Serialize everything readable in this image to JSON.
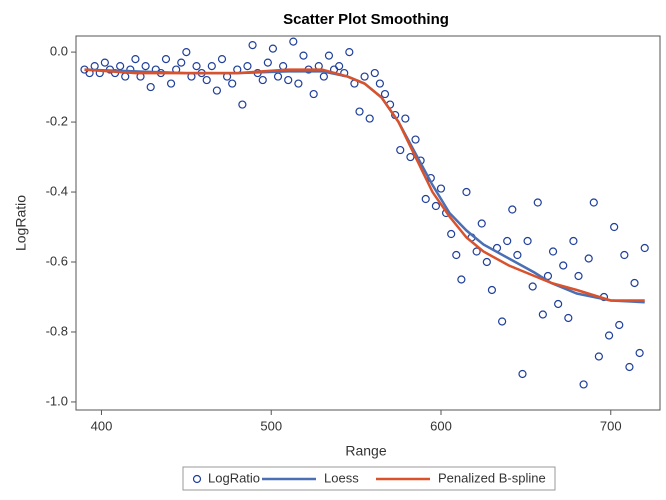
{
  "chart_data": {
    "type": "scatter",
    "title": "Scatter Plot Smoothing",
    "x_label": "Range",
    "y_label": "LogRatio",
    "xlim": [
      385,
      729
    ],
    "ylim": [
      -1.023,
      0.046
    ],
    "xticks": [
      400,
      500,
      600,
      700
    ],
    "yticks": [
      {
        "value": 0,
        "label": "0.0"
      },
      {
        "value": -0.2,
        "label": "-0.2"
      },
      {
        "value": -0.4,
        "label": "-0.4"
      },
      {
        "value": -0.6,
        "label": "-0.6"
      },
      {
        "value": -0.8,
        "label": "-0.8"
      },
      {
        "value": -1,
        "label": "-1.0"
      }
    ],
    "legend": "bottom",
    "series": [
      {
        "name": "LogRatio",
        "color": "#1f3f9a",
        "marker": "circle",
        "x": [
          390,
          393,
          396,
          399,
          402,
          405,
          408,
          411,
          414,
          417,
          420,
          423,
          426,
          429,
          432,
          435,
          438,
          441,
          444,
          447,
          450,
          453,
          456,
          459,
          462,
          465,
          468,
          471,
          474,
          477,
          480,
          483,
          486,
          489,
          492,
          495,
          498,
          501,
          504,
          507,
          510,
          513,
          516,
          519,
          522,
          525,
          528,
          531,
          534,
          537,
          540,
          543,
          546,
          549,
          552,
          555,
          558,
          561,
          564,
          567,
          570,
          573,
          576,
          579,
          582,
          585,
          588,
          591,
          594,
          597,
          600,
          603,
          606,
          609,
          612,
          615,
          618,
          621,
          624,
          627,
          630,
          633,
          636,
          639,
          642,
          645,
          648,
          651,
          654,
          657,
          660,
          663,
          666,
          669,
          672,
          675,
          678,
          681,
          684,
          687,
          690,
          693,
          696,
          699,
          702,
          705,
          708,
          711,
          714,
          717,
          720
        ],
        "values": [
          -0.05,
          -0.06,
          -0.04,
          -0.06,
          -0.03,
          -0.05,
          -0.06,
          -0.04,
          -0.07,
          -0.05,
          -0.02,
          -0.07,
          -0.04,
          -0.1,
          -0.05,
          -0.06,
          -0.02,
          -0.09,
          -0.05,
          -0.03,
          0.0,
          -0.07,
          -0.04,
          -0.06,
          -0.08,
          -0.04,
          -0.11,
          -0.02,
          -0.07,
          -0.09,
          -0.05,
          -0.15,
          -0.04,
          0.02,
          -0.06,
          -0.08,
          -0.03,
          0.01,
          -0.07,
          -0.04,
          -0.08,
          0.03,
          -0.09,
          -0.01,
          -0.05,
          -0.12,
          -0.04,
          -0.07,
          -0.01,
          -0.05,
          -0.04,
          -0.06,
          0.0,
          -0.09,
          -0.17,
          -0.07,
          -0.19,
          -0.06,
          -0.09,
          -0.12,
          -0.15,
          -0.18,
          -0.28,
          -0.19,
          -0.3,
          -0.25,
          -0.31,
          -0.42,
          -0.36,
          -0.44,
          -0.39,
          -0.46,
          -0.52,
          -0.58,
          -0.65,
          -0.4,
          -0.53,
          -0.57,
          -0.49,
          -0.6,
          -0.68,
          -0.56,
          -0.77,
          -0.54,
          -0.45,
          -0.58,
          -0.92,
          -0.54,
          -0.67,
          -0.43,
          -0.75,
          -0.64,
          -0.57,
          -0.72,
          -0.61,
          -0.76,
          -0.54,
          -0.64,
          -0.95,
          -0.59,
          -0.43,
          -0.87,
          -0.7,
          -0.81,
          -0.5,
          -0.78,
          -0.58,
          -0.9,
          -0.66,
          -0.86,
          -0.56
        ]
      },
      {
        "name": "Loess",
        "color": "#4a6fb5",
        "line": true,
        "x": [
          390,
          420,
          450,
          480,
          510,
          530,
          545,
          555,
          565,
          575,
          585,
          595,
          605,
          615,
          625,
          640,
          655,
          665,
          680,
          700,
          720
        ],
        "values": [
          -0.05,
          -0.055,
          -0.06,
          -0.06,
          -0.055,
          -0.055,
          -0.07,
          -0.09,
          -0.13,
          -0.2,
          -0.29,
          -0.38,
          -0.46,
          -0.51,
          -0.55,
          -0.59,
          -0.63,
          -0.66,
          -0.69,
          -0.71,
          -0.715
        ]
      },
      {
        "name": "Penalized B-spline",
        "color": "#d9522c",
        "line": true,
        "x": [
          390,
          420,
          450,
          480,
          510,
          530,
          545,
          555,
          565,
          575,
          585,
          595,
          605,
          615,
          625,
          640,
          655,
          665,
          680,
          700,
          720
        ],
        "values": [
          -0.05,
          -0.06,
          -0.06,
          -0.06,
          -0.05,
          -0.05,
          -0.07,
          -0.09,
          -0.13,
          -0.2,
          -0.3,
          -0.4,
          -0.47,
          -0.53,
          -0.57,
          -0.61,
          -0.64,
          -0.66,
          -0.68,
          -0.71,
          -0.71
        ]
      }
    ]
  }
}
